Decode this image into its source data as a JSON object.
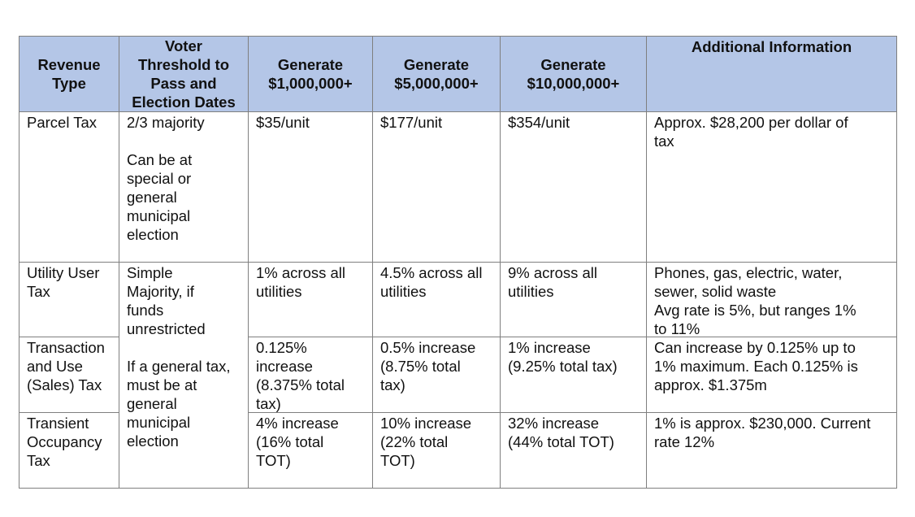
{
  "headers": [
    "Revenue\nType",
    "Voter\nThreshold to\nPass and\nElection Dates",
    "Generate\n$1,000,000+",
    "Generate\n$5,000,000+",
    "Generate\n$10,000,000+",
    "Additional Information"
  ],
  "rows": [
    {
      "type": "Parcel Tax",
      "threshold": "2/3 majority\n\nCan be at\nspecial or\ngeneral\nmunicipal\nelection",
      "g1": "$35/unit",
      "g5": "$177/unit",
      "g10": "$354/unit",
      "info": "Approx. $28,200 per dollar of\ntax"
    },
    {
      "type": "Utility User\nTax",
      "g1": "1% across all\nutilities",
      "g5": "4.5% across all\nutilities",
      "g10": "9% across all\nutilities",
      "info": "Phones, gas, electric, water,\nsewer, solid waste\nAvg rate is 5%, but ranges 1%\nto 11%"
    },
    {
      "type": "Transaction\nand Use\n(Sales) Tax",
      "g1": "0.125%\nincrease\n(8.375% total\ntax)",
      "g5": "0.5% increase\n(8.75% total\ntax)",
      "g10": "1% increase\n(9.25% total tax)",
      "info": "Can increase by 0.125% up to\n1% maximum. Each 0.125% is\napprox. $1.375m"
    },
    {
      "type": "Transient\nOccupancy\nTax",
      "g1": "4% increase\n(16% total\nTOT)",
      "g5": "10% increase\n(22% total\nTOT)",
      "g10": "32% increase\n(44% total TOT)",
      "info": "1% is approx. $230,000. Current\nrate 12%"
    }
  ],
  "merged_threshold": "Simple\nMajority, if\nfunds\nunrestricted\n\nIf a general tax,\nmust be at\ngeneral\nmunicipal\nelection"
}
